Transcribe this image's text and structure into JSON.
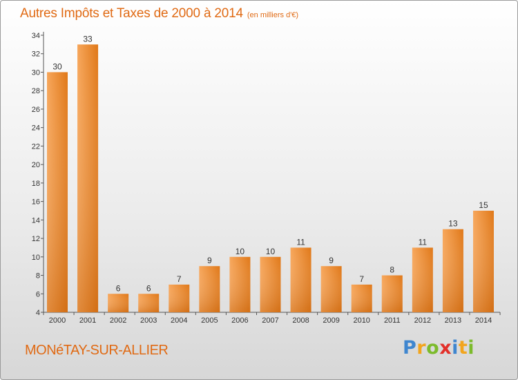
{
  "chart_data": {
    "type": "bar",
    "title": "Autres Impôts et Taxes de 2000 à 2014",
    "subtitle": "(en milliers d'€)",
    "categories": [
      "2000",
      "2001",
      "2002",
      "2003",
      "2004",
      "2005",
      "2006",
      "2007",
      "2008",
      "2009",
      "2010",
      "2011",
      "2012",
      "2013",
      "2014"
    ],
    "values": [
      30,
      33,
      6,
      6,
      7,
      9,
      10,
      10,
      11,
      9,
      7,
      8,
      11,
      13,
      15
    ],
    "ylim": [
      4,
      34
    ],
    "yticks": [
      4,
      6,
      8,
      10,
      12,
      14,
      16,
      18,
      20,
      22,
      24,
      26,
      28,
      30,
      32,
      34
    ],
    "grid": false,
    "bar_color": "#f08a2c"
  },
  "footer": {
    "city": "MONéTAY-SUR-ALLIER"
  },
  "logo": {
    "text": "Proxiti",
    "letters": [
      {
        "ch": "P",
        "color": "#3f86cf"
      },
      {
        "ch": "r",
        "color": "#f2a51e"
      },
      {
        "ch": "o",
        "color": "#7cbb2c"
      },
      {
        "ch": "x",
        "color": "#e2302a"
      },
      {
        "ch": "i",
        "color": "#3f86cf"
      },
      {
        "ch": "t",
        "color": "#f2a51e"
      },
      {
        "ch": "i",
        "color": "#7cbb2c"
      }
    ]
  }
}
